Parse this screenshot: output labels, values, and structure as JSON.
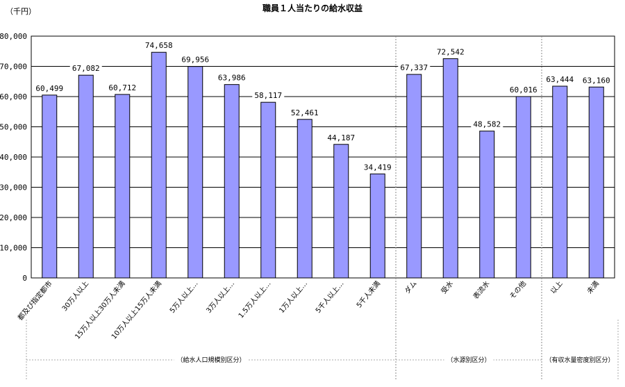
{
  "chart_data": {
    "type": "bar",
    "title": "職員１人当たりの給水収益",
    "unit_label": "（千円）",
    "ylim": [
      0,
      80000
    ],
    "ytick_step": 10000,
    "yticks": [
      "0",
      "10,000",
      "20,000",
      "30,000",
      "40,000",
      "50,000",
      "60,000",
      "70,000",
      "80,000"
    ],
    "grid": true,
    "categories": [
      "都及び指定都市",
      "30万人以上",
      "15万人以上30万人未満",
      "10万人以上15万人未満",
      "5万人以上…",
      "3万人以上…",
      "1.5万人以上…",
      "1万人以上…",
      "5千人以上…",
      "5千人未満",
      "ダム",
      "受水",
      "表流水",
      "その他",
      "以上",
      "未満"
    ],
    "values": [
      60499,
      67082,
      60712,
      74658,
      69956,
      63986,
      58117,
      52461,
      44187,
      34419,
      67337,
      72542,
      48582,
      60016,
      63444,
      63160
    ],
    "value_labels": [
      "60,499",
      "67,082",
      "60,712",
      "74,658",
      "69,956",
      "63,986",
      "58,117",
      "52,461",
      "44,187",
      "34,419",
      "67,337",
      "72,542",
      "48,582",
      "60,016",
      "63,444",
      "63,160"
    ],
    "bar_color": "#9999ff",
    "groups": [
      {
        "label": "（給水人口規模別区分）",
        "start": 0,
        "end": 9
      },
      {
        "label": "（水源別区分）",
        "start": 10,
        "end": 13
      },
      {
        "label": "（有収水量密度別区分）",
        "start": 14,
        "end": 15
      }
    ]
  }
}
